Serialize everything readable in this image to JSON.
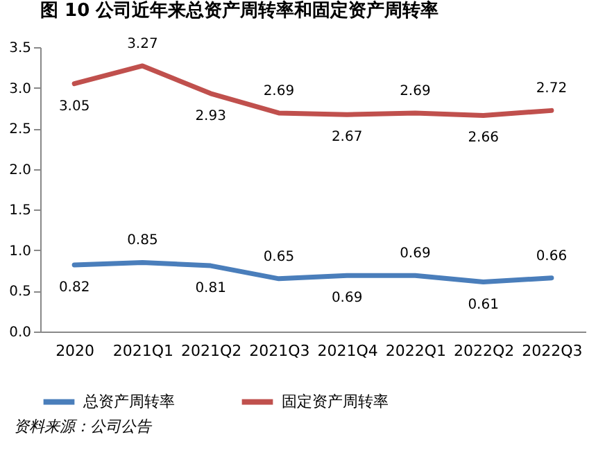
{
  "chart_data": {
    "type": "line",
    "title": "图 10  公司近年来总资产周转率和固定资产周转率",
    "categories": [
      "2020",
      "2021Q1",
      "2021Q2",
      "2021Q3",
      "2021Q4",
      "2022Q1",
      "2022Q2",
      "2022Q3"
    ],
    "series": [
      {
        "name": "总资产周转率",
        "color": "#4a7ebb",
        "values": [
          0.82,
          0.85,
          0.81,
          0.65,
          0.69,
          0.69,
          0.61,
          0.66
        ]
      },
      {
        "name": "固定资产周转率",
        "color": "#c0504d",
        "values": [
          3.05,
          3.27,
          2.93,
          2.69,
          2.67,
          2.69,
          2.66,
          2.72
        ]
      }
    ],
    "ylim": [
      0,
      3.5
    ],
    "yticks": [
      {
        "value": 0,
        "label": "0.0"
      },
      {
        "value": 0.5,
        "label": "0.5"
      },
      {
        "value": 1,
        "label": "1.0"
      },
      {
        "value": 1.5,
        "label": "1.5"
      },
      {
        "value": 2,
        "label": "2.0"
      },
      {
        "value": 2.5,
        "label": "2.5"
      },
      {
        "value": 3,
        "label": "3.0"
      },
      {
        "value": 3.5,
        "label": "3.5"
      }
    ],
    "grid": false,
    "legend": "bottom",
    "marker": "none",
    "line_style": "solid",
    "data_labels": true,
    "annotations": [
      "资料来源：公司公告"
    ]
  }
}
